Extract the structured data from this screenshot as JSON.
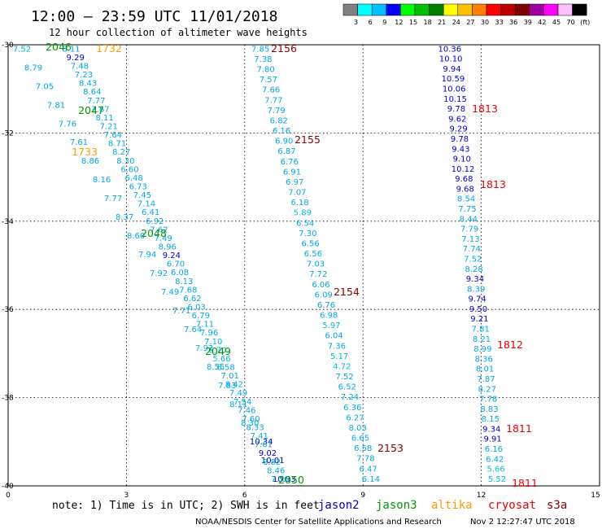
{
  "header": {
    "title": "12:00 – 23:59 UTC 11/01/2018",
    "subtitle": "12 hour collection of altimeter wave heights"
  },
  "footer": {
    "note": "note: 1) Time is in UTC; 2) SWH is in feet",
    "credit": "NOAA/NESDIS Center for Satellite Applications and Research",
    "timestamp": "Nov  2 12:27:47 UTC 2018"
  },
  "legend": {
    "satellites": [
      {
        "name": "jason2",
        "color": "#0000cc"
      },
      {
        "name": "jason3",
        "color": "#009900"
      },
      {
        "name": "altika",
        "color": "#ff9900"
      },
      {
        "name": "cryosat",
        "color": "#ee0000"
      },
      {
        "name": "s3a",
        "color": "#880000"
      }
    ]
  },
  "colorbar": {
    "labels": [
      "3",
      "6",
      "9",
      "12",
      "15",
      "18",
      "21",
      "24",
      "27",
      "30",
      "33",
      "36",
      "39",
      "42",
      "45",
      "70",
      "(ft)"
    ],
    "colors": [
      "#808080",
      "#00ffff",
      "#00c0ff",
      "#0000ff",
      "#00ff00",
      "#00c000",
      "#008000",
      "#ffff00",
      "#ffc000",
      "#ff8000",
      "#ff0000",
      "#c00000",
      "#800000",
      "#a000a0",
      "#ff00ff",
      "#ffc0ff",
      "#000000"
    ]
  },
  "chart_data": {
    "type": "scatter",
    "description_x": "longitude",
    "description_y": "latitude",
    "xlim": [
      0,
      15
    ],
    "ylim": [
      -40,
      -30
    ],
    "x_ticks": [
      "0",
      "3",
      "6",
      "9",
      "12",
      "15"
    ],
    "y_ticks": [
      "-30",
      "-32",
      "-34",
      "-36",
      "-38",
      "-40"
    ],
    "grid": true,
    "value_colors": {
      "3-6": "#00bcdc",
      "6-9": "#00a8e8",
      "9-12": "#0000cc"
    },
    "passes": [
      {
        "time": "2046",
        "satellite": "jason3"
      },
      {
        "time": "1732",
        "satellite": "altika"
      },
      {
        "time": "2047",
        "satellite": "jason3"
      },
      {
        "time": "1733",
        "satellite": "altika"
      },
      {
        "time": "2048",
        "satellite": "jason3"
      },
      {
        "time": "2049",
        "satellite": "jason3"
      },
      {
        "time": "2050",
        "satellite": "jason3"
      },
      {
        "time": "2156",
        "satellite": "s3a"
      },
      {
        "time": "2155",
        "satellite": "s3a"
      },
      {
        "time": "2154",
        "satellite": "s3a"
      },
      {
        "time": "2153",
        "satellite": "s3a"
      },
      {
        "time": "1813",
        "satellite": "cryosat"
      },
      {
        "time": "1813",
        "satellite": "cryosat"
      },
      {
        "time": "1812",
        "satellite": "cryosat"
      },
      {
        "time": "1811",
        "satellite": "cryosat"
      },
      {
        "time": "1811",
        "satellite": "cryosat"
      }
    ],
    "tracks": [
      {
        "name": "A",
        "lon": [
          0.35,
          7.0
        ],
        "lat": [
          -30.08,
          -39.98
        ],
        "values": [
          "7.52",
          "8.79",
          "7.05",
          "7.81",
          "7.76",
          "7.61",
          "8.86",
          "8.16",
          "7.77",
          "8.37",
          "8.60",
          "7.94",
          "7.92",
          "7.49",
          "7.71",
          "7.64",
          "7.92",
          "8.55",
          "7.83",
          "8.11",
          "8.30",
          "10.34",
          "10.01",
          "10.33"
        ]
      },
      {
        "name": "B",
        "lon": [
          1.6,
          6.9
        ],
        "lat": [
          -30.08,
          -39.98
        ],
        "values": [
          "8.11",
          "9.29",
          "7.48",
          "7.23",
          "8.43",
          "8.64",
          "7.77",
          "7.67",
          "8.11",
          "7.21",
          "7.64",
          "8.71",
          "8.27",
          "8.30",
          "6.60",
          "6.48",
          "6.73",
          "7.45",
          "7.14",
          "6.41",
          "6.92",
          "7.62",
          "7.49",
          "8.96",
          "9.24",
          "6.70",
          "6.08",
          "8.13",
          "7.68",
          "6.62",
          "6.03",
          "6.79",
          "7.11",
          "7.96",
          "7.10",
          "6.70",
          "5.66",
          "6.58",
          "7.01",
          "8.42",
          "7.49",
          "7.54",
          "7.46",
          "7.60",
          "8.33",
          "7.41",
          "7.61",
          "9.02",
          "8.82",
          "8.46",
          "7.56"
        ]
      },
      {
        "name": "C",
        "lon": [
          6.4,
          9.2
        ],
        "lat": [
          -30.08,
          -39.98
        ],
        "values": [
          "7.85",
          "7.38",
          "7.80",
          "7.57",
          "7.66",
          "7.77",
          "7.79",
          "6.82",
          "6.16",
          "6.90",
          "6.87",
          "6.76",
          "6.91",
          "6.97",
          "7.07",
          "6.18",
          "5.89",
          "6.54",
          "7.30",
          "6.56",
          "6.56",
          "7.03",
          "7.72",
          "6.06",
          "6.09",
          "6.76",
          "6.98",
          "5.97",
          "6.04",
          "7.36",
          "5.17",
          "4.72",
          "7.52",
          "6.52",
          "7.24",
          "6.36",
          "6.27",
          "8.03",
          "6.65",
          "6.58",
          "7.78",
          "6.47",
          "6.14"
        ]
      },
      {
        "name": "D",
        "lon": [
          11.2,
          12.4
        ],
        "lat": [
          -30.08,
          -39.98
        ],
        "values": [
          "10.36",
          "10.10",
          "9.94",
          "10.59",
          "10.06",
          "10.15",
          "9.78",
          "9.62",
          "9.29",
          "9.78",
          "9.43",
          "9.10",
          "10.12",
          "9.68",
          "9.68",
          "8.54",
          "7.75",
          "8.44",
          "7.79",
          "7.13",
          "7.74",
          "7.52",
          "8.28",
          "9.34",
          "8.39",
          "9.74",
          "9.50",
          "9.21",
          "7.81",
          "8.21",
          "8.99",
          "8.36",
          "8.01",
          "7.87",
          "8.27",
          "7.78",
          "8.83",
          "8.15",
          "9.34",
          "9.91",
          "6.16",
          "6.42",
          "5.66",
          "5.52"
        ]
      }
    ]
  }
}
